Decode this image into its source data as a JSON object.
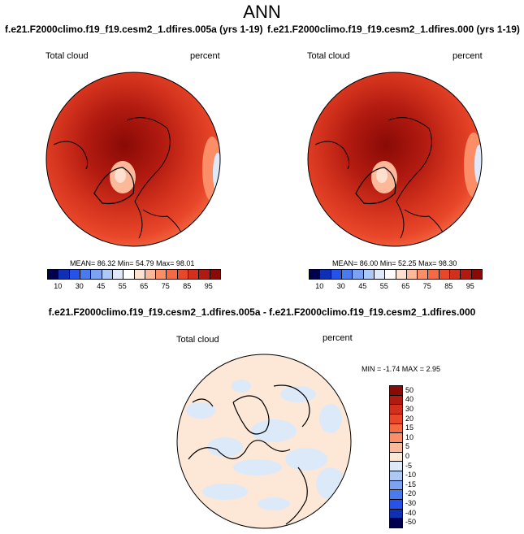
{
  "title": "ANN",
  "panels": [
    {
      "case": "f.e21.F2000climo.f19_f19.cesm2_1.dfires.005a (yrs 1-19)",
      "variable": "Total cloud",
      "units": "percent",
      "stats": "MEAN=  86.32  Min=  54.79  Max=  98.01"
    },
    {
      "case": "f.e21.F2000climo.f19_f19.cesm2_1.dfires.000 (yrs 1-19)",
      "variable": "Total cloud",
      "units": "percent",
      "stats": "MEAN=  86.00  Min=  52.25  Max=  98.30"
    }
  ],
  "diff": {
    "case": "f.e21.F2000climo.f19_f19.cesm2_1.dfires.005a - f.e21.F2000climo.f19_f19.cesm2_1.dfires.000",
    "variable": "Total cloud",
    "units": "percent",
    "stats": "MIN =  -1.74 MAX =   2.95"
  },
  "colorbar": {
    "ticks": [
      "10",
      "30",
      "45",
      "55",
      "65",
      "75",
      "85",
      "95"
    ],
    "colors": [
      "#00004c",
      "#0f2fb5",
      "#2552e8",
      "#4a7bee",
      "#7ea2f3",
      "#aec8f6",
      "#dfe9fa",
      "#ffffff",
      "#fee0d0",
      "#fcb898",
      "#fb8e66",
      "#f46a42",
      "#e9472a",
      "#d1311c",
      "#b11a10",
      "#8a0a06"
    ]
  },
  "diff_colorbar": {
    "ticks": [
      "50",
      "40",
      "30",
      "20",
      "15",
      "10",
      "5",
      "0",
      "-5",
      "-10",
      "-15",
      "-20",
      "-30",
      "-40",
      "-50"
    ],
    "colors": [
      "#8a0a06",
      "#b11a10",
      "#d1311c",
      "#e9472a",
      "#f46a42",
      "#fb8e66",
      "#fcb898",
      "#fde8d8",
      "#dce9f9",
      "#aec8f6",
      "#7ea2f3",
      "#4a7bee",
      "#2552e8",
      "#0f2fb5",
      "#00004c"
    ]
  }
}
